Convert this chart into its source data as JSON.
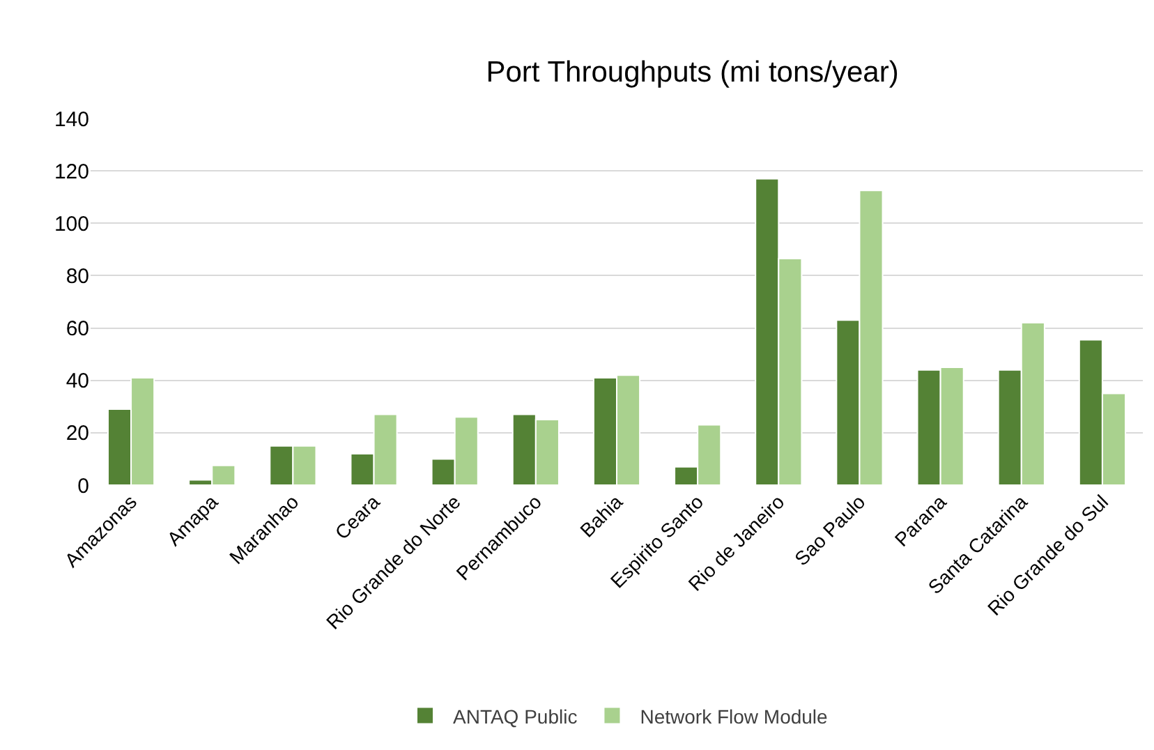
{
  "chart_data": {
    "type": "bar",
    "title": "Port Throughputs (mi tons/year)",
    "categories": [
      "Amazonas",
      "Amapa",
      "Maranhao",
      "Ceara",
      "Rio Grande do Norte",
      "Pernambuco",
      "Bahia",
      "Espirito Santo",
      "Rio de Janeiro",
      "Sao Paulo",
      "Parana",
      "Santa Catarina",
      "Rio Grande do Sul"
    ],
    "series": [
      {
        "name": "ANTAQ Public",
        "color": "#548235",
        "values": [
          29,
          2,
          15,
          12,
          10,
          27,
          41,
          7,
          117,
          63,
          44,
          44,
          55.5
        ]
      },
      {
        "name": "Network Flow Module",
        "color": "#a9d18e",
        "values": [
          41,
          7.5,
          15,
          27,
          26,
          25,
          42,
          23,
          86.5,
          112.5,
          45,
          62,
          35
        ]
      }
    ],
    "ylim": [
      0,
      140
    ],
    "yticks": [
      0,
      20,
      40,
      60,
      80,
      100,
      120,
      140
    ],
    "grid": "y",
    "legend": "bottom"
  }
}
